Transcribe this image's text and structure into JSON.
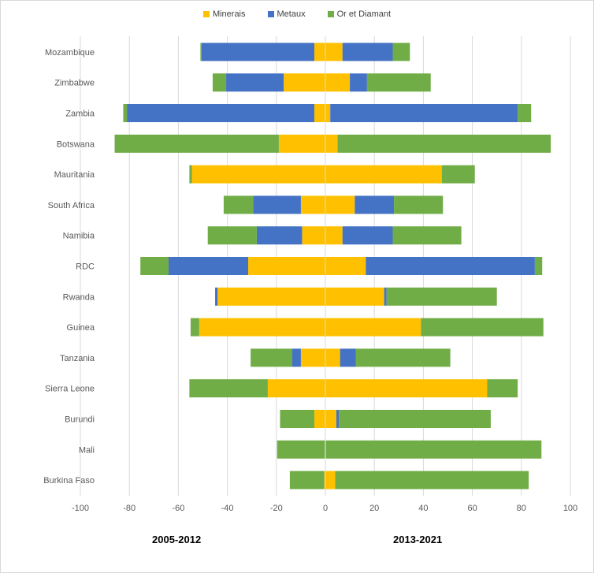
{
  "colors": {
    "minerais": "#ffc000",
    "metaux": "#4472c4",
    "or_diamant": "#70ad47",
    "grid": "#d9d9d9",
    "tick_text": "#595959"
  },
  "legend": {
    "minerais": "Minerais",
    "metaux": "Metaux",
    "or_diamant": "Or et Diamant"
  },
  "period_labels": {
    "left": "2005-2012",
    "right": "2013-2021"
  },
  "chart_data": {
    "type": "bar",
    "orientation": "horizontal-diverging",
    "title": "",
    "xlabel": "",
    "ylabel": "",
    "xlim": [
      -100,
      100
    ],
    "xticks": [
      -100,
      -80,
      -60,
      -40,
      -20,
      0,
      20,
      40,
      60,
      80,
      100
    ],
    "grid": true,
    "legend_position": "top",
    "categories": [
      "Mozambique",
      "Zimbabwe",
      "Zambia",
      "Botswana",
      "Mauritania",
      "South Africa",
      "Namibia",
      "RDC",
      "Rwanda",
      "Guinea",
      "Tanzania",
      "Sierra Leone",
      "Burundi",
      "Mali",
      "Burkina Faso"
    ],
    "series": [
      {
        "name": "Minerais",
        "color_key": "minerais",
        "left": [
          4.5,
          17,
          4.5,
          19,
          54.5,
          10,
          9.5,
          31.5,
          44,
          51.5,
          10,
          23.5,
          4.5,
          0.2,
          0.5
        ],
        "right": [
          7,
          10,
          2,
          5,
          47.5,
          12,
          7,
          16.5,
          24,
          39,
          6,
          66,
          4.5,
          0.2,
          4
        ]
      },
      {
        "name": "Metaux",
        "color_key": "metaux",
        "left": [
          46,
          23.5,
          76.5,
          0,
          0,
          19.5,
          18.5,
          32.5,
          1,
          0,
          3.5,
          0,
          0,
          0,
          0
        ],
        "right": [
          20.5,
          7,
          76.5,
          0,
          0,
          16,
          20.5,
          69,
          1,
          0,
          6.5,
          0,
          1,
          0,
          0
        ]
      },
      {
        "name": "Or et Diamant",
        "color_key": "or_diamant",
        "left": [
          0.5,
          5.5,
          1.5,
          67,
          1,
          12,
          20,
          11.5,
          0,
          3.5,
          17,
          32,
          14,
          19.5,
          14
        ],
        "right": [
          7,
          26,
          5.5,
          87,
          13.5,
          20,
          28,
          3,
          45,
          50,
          38.5,
          12.5,
          62,
          88,
          79
        ]
      }
    ]
  }
}
